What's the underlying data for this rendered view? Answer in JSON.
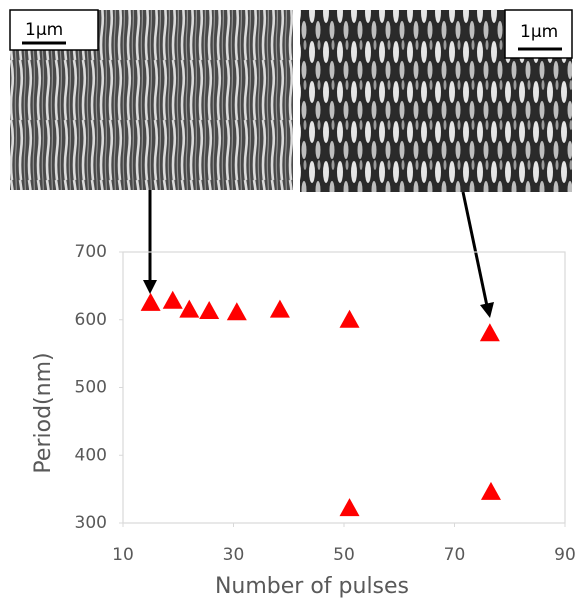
{
  "chart_data": {
    "type": "scatter",
    "x_label": "Number of pulses",
    "y_label": "Period(nm)",
    "annotations": [
      "1μm",
      "1μm"
    ],
    "series": [
      {
        "color": "#ff0000",
        "x": [
          15,
          19,
          22,
          25.6,
          30.6,
          38.4,
          51,
          76.4,
          51,
          76.6
        ],
        "values": [
          625,
          628,
          615,
          613,
          611,
          615,
          600,
          580,
          322,
          346
        ]
      }
    ],
    "xlim": [
      10,
      90
    ],
    "xticks": [
      10,
      30,
      50,
      70,
      90
    ],
    "ylim": [
      300,
      700
    ],
    "yticks": [
      300,
      400,
      500,
      600,
      700
    ]
  }
}
